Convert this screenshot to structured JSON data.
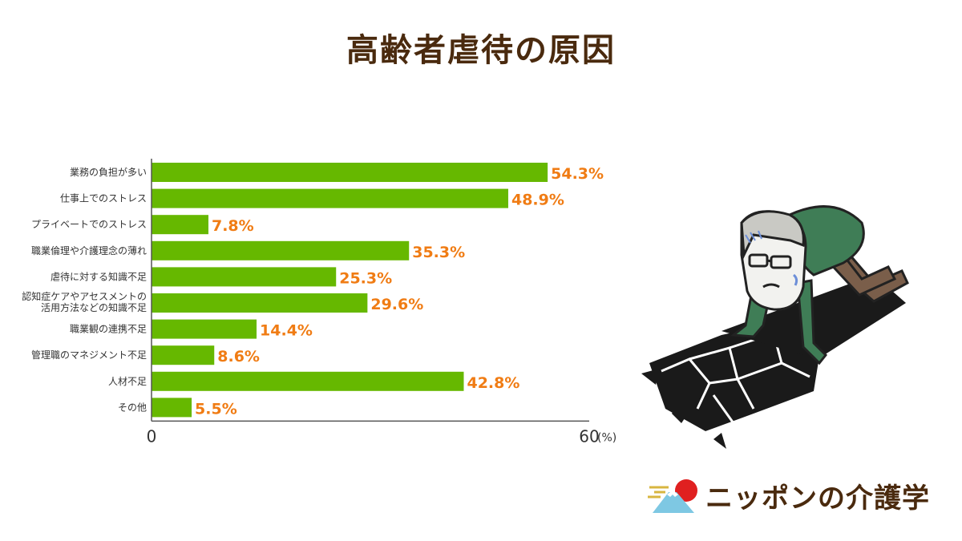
{
  "title": "高齢者虐待の原因",
  "chart_data": {
    "type": "bar",
    "orientation": "horizontal",
    "categories": [
      "業務の負担が多い",
      "仕事上でのストレス",
      "プライベートでのストレス",
      "職業倫理や介護理念の薄れ",
      "虐待に対する知識不足",
      "認知症ケアやアセスメントの\n活用方法などの知識不足",
      "職業観の連携不足",
      "管理職のマネジメント不足",
      "人材不足",
      "その他"
    ],
    "values": [
      54.3,
      48.9,
      7.8,
      35.3,
      25.3,
      29.6,
      14.4,
      8.6,
      42.8,
      5.5
    ],
    "value_labels": [
      "54.3%",
      "48.9%",
      "7.8%",
      "35.3%",
      "25.3%",
      "29.6%",
      "14.4%",
      "8.6%",
      "42.8%",
      "5.5%"
    ],
    "xlim": [
      0,
      60
    ],
    "x_tick_labels": [
      "0",
      "60"
    ],
    "x_unit": "(%)",
    "grid": false,
    "colors": {
      "bar": "#66b800",
      "value_label": "#f07c14",
      "axis": "#555555"
    }
  },
  "logo": {
    "text": "ニッポンの介護学",
    "accent": "#e02020",
    "sky": "#7ec8e3"
  },
  "illustration": {
    "name": "crawling-elderly-man-illustration"
  }
}
